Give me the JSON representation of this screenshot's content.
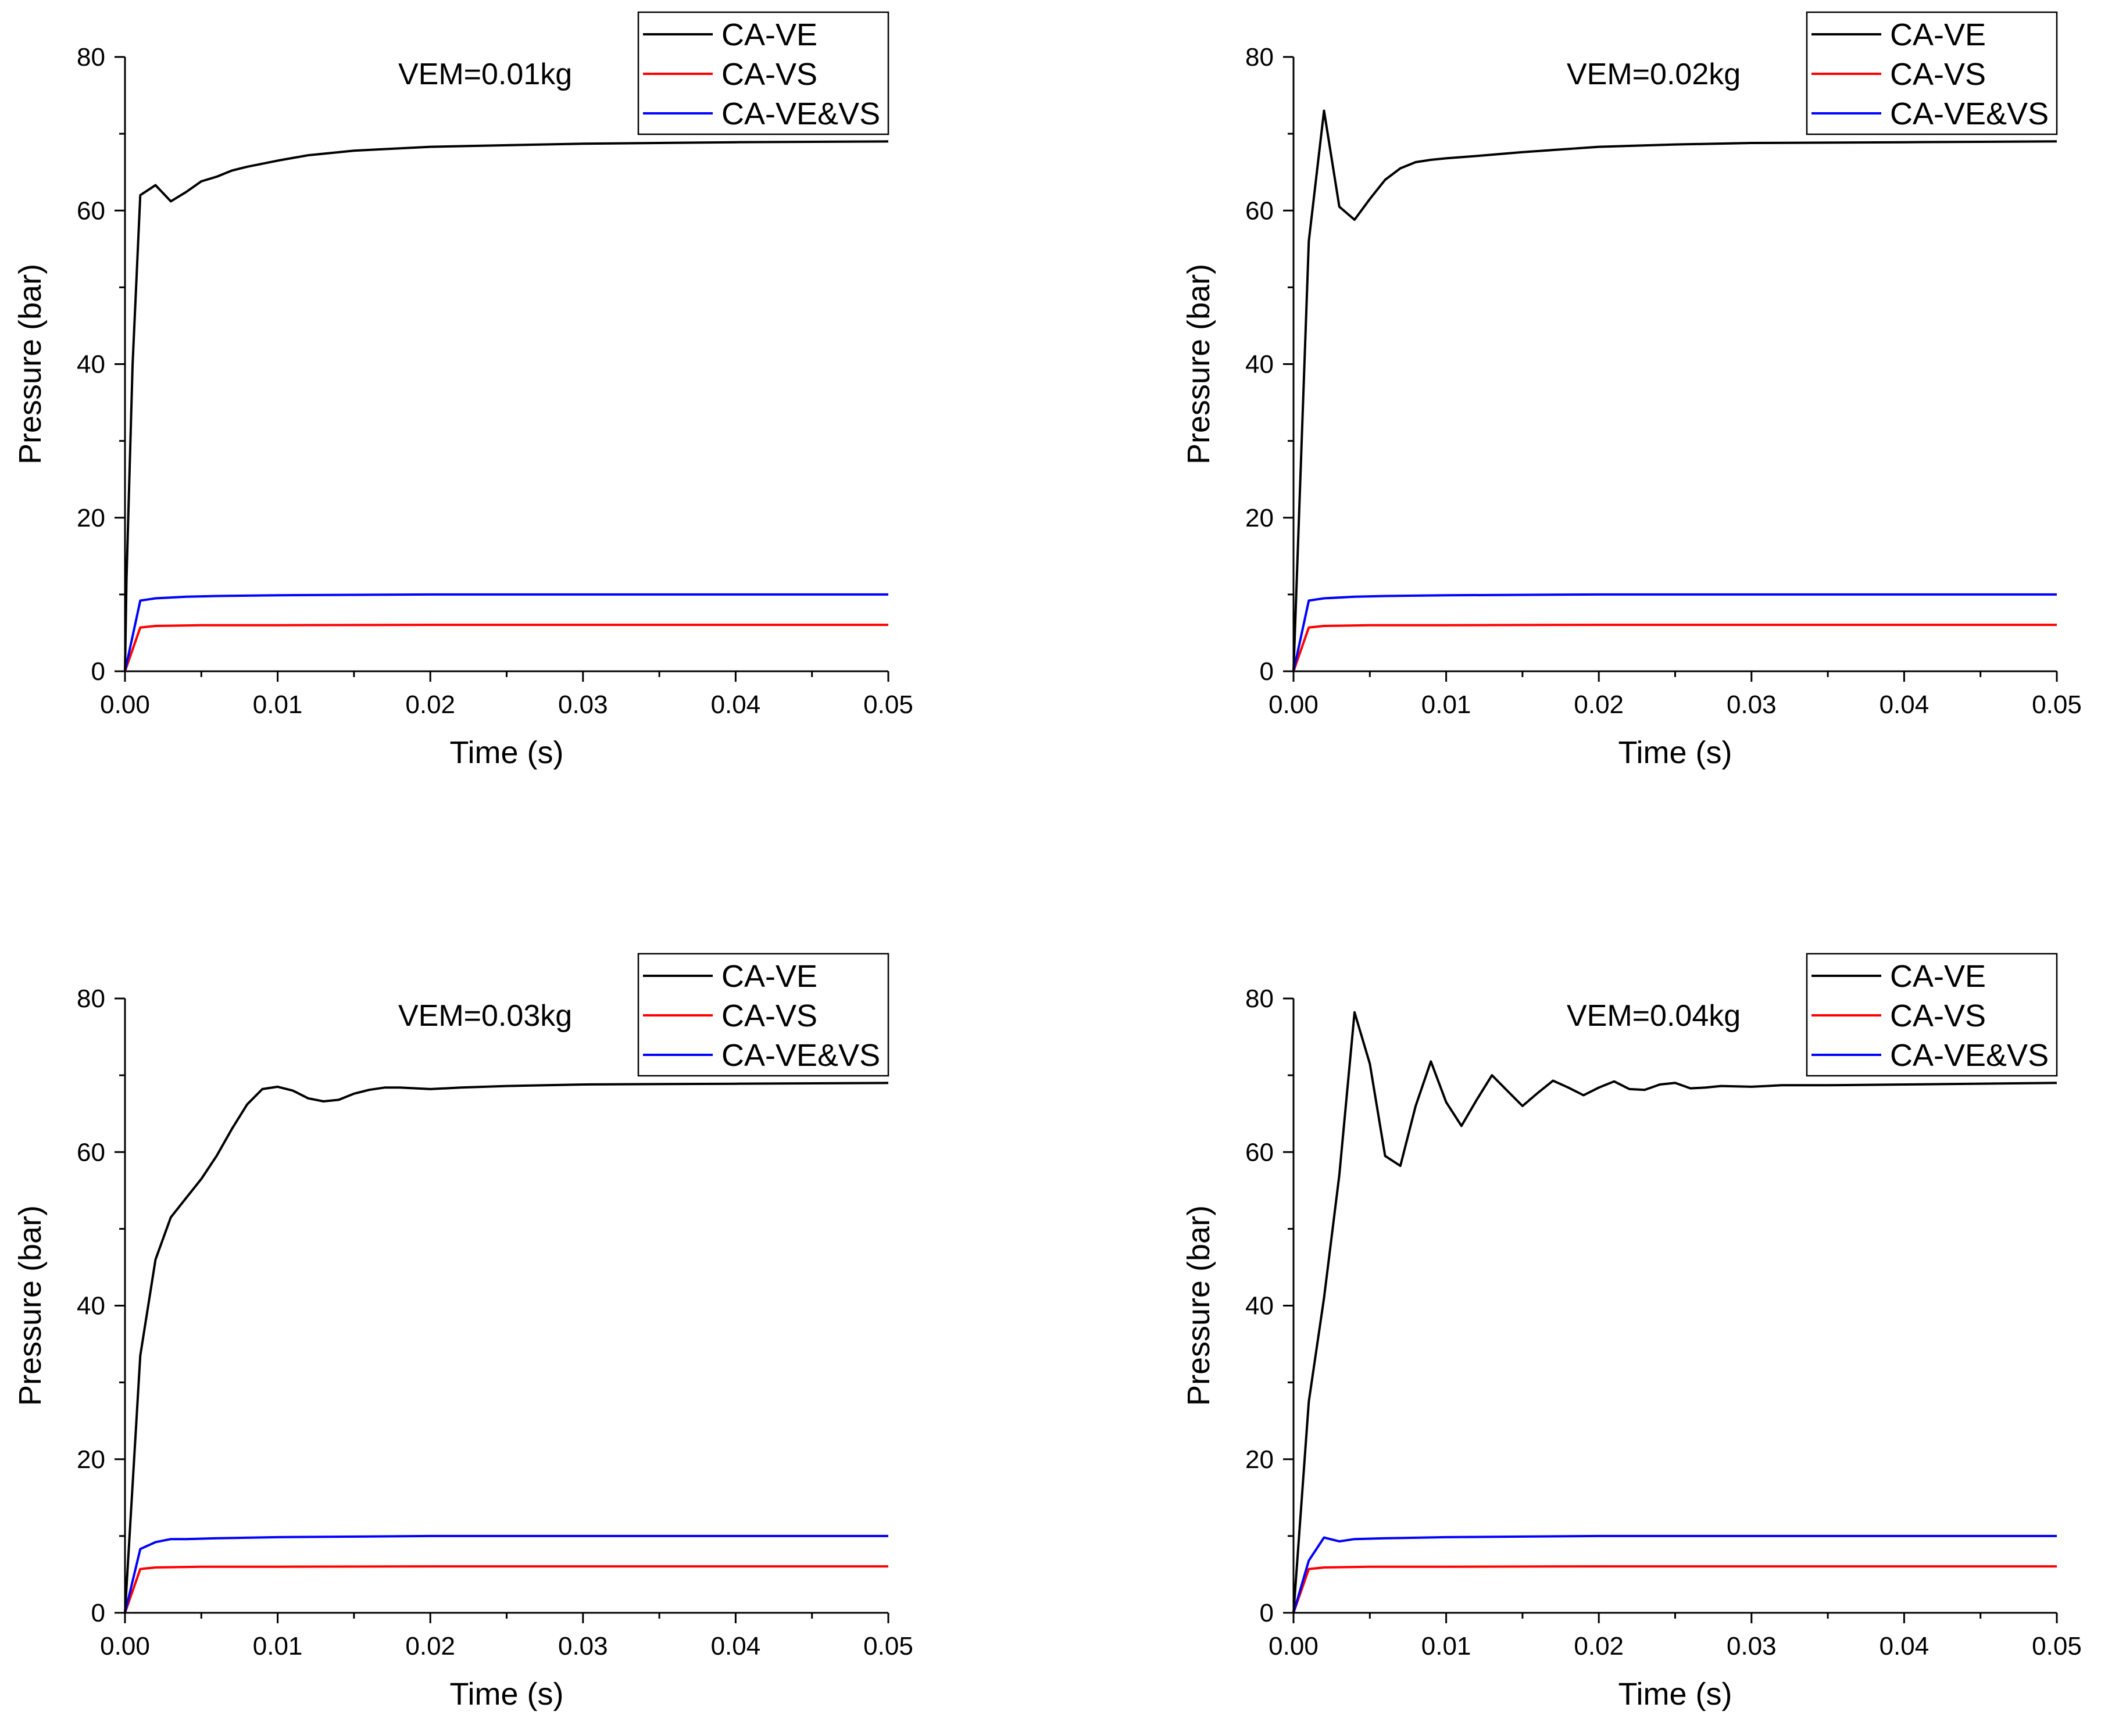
{
  "colors": {
    "CA-VE": "#000000",
    "CA-VS": "#ff0000",
    "CA-VE&VS": "#0000ff"
  },
  "chart_data": [
    {
      "type": "line",
      "annotation": "VEM=0.01kg",
      "xlabel": "Time (s)",
      "ylabel": "Pressure (bar)",
      "xlim": [
        0,
        0.05
      ],
      "ylim": [
        0,
        80
      ],
      "xticks": [
        "0.00",
        "0.01",
        "0.02",
        "0.03",
        "0.04",
        "0.05"
      ],
      "yticks": [
        "0",
        "20",
        "40",
        "60",
        "80"
      ],
      "legend_position": "top-right",
      "series": [
        {
          "name": "CA-VE",
          "x": [
            0,
            0.0001,
            0.0005,
            0.001,
            0.002,
            0.003,
            0.004,
            0.005,
            0.006,
            0.007,
            0.008,
            0.009,
            0.01,
            0.012,
            0.015,
            0.02,
            0.025,
            0.03,
            0.035,
            0.04,
            0.05
          ],
          "y": [
            0,
            12,
            40,
            62,
            63.3,
            61.2,
            62.4,
            63.8,
            64.4,
            65.2,
            65.7,
            66.1,
            66.5,
            67.2,
            67.8,
            68.3,
            68.5,
            68.7,
            68.8,
            68.9,
            69.0
          ]
        },
        {
          "name": "CA-VS",
          "x": [
            0,
            0.001,
            0.002,
            0.005,
            0.01,
            0.02,
            0.03,
            0.04,
            0.05
          ],
          "y": [
            0,
            5.7,
            5.9,
            6.0,
            6.0,
            6.05,
            6.05,
            6.05,
            6.05
          ]
        },
        {
          "name": "CA-VE&VS",
          "x": [
            0,
            0.001,
            0.002,
            0.004,
            0.006,
            0.01,
            0.02,
            0.03,
            0.04,
            0.05
          ],
          "y": [
            0,
            9.2,
            9.5,
            9.7,
            9.8,
            9.9,
            10.0,
            10.0,
            10.0,
            10.0
          ]
        }
      ]
    },
    {
      "type": "line",
      "annotation": "VEM=0.02kg",
      "xlabel": "Time (s)",
      "ylabel": "Pressure (bar)",
      "xlim": [
        0,
        0.05
      ],
      "ylim": [
        0,
        80
      ],
      "xticks": [
        "0.00",
        "0.01",
        "0.02",
        "0.03",
        "0.04",
        "0.05"
      ],
      "yticks": [
        "0",
        "20",
        "40",
        "60",
        "80"
      ],
      "legend_position": "top-right",
      "series": [
        {
          "name": "CA-VE",
          "x": [
            0,
            0.001,
            0.002,
            0.003,
            0.004,
            0.005,
            0.006,
            0.007,
            0.008,
            0.009,
            0.01,
            0.012,
            0.015,
            0.02,
            0.025,
            0.03,
            0.04,
            0.05
          ],
          "y": [
            0,
            56,
            73,
            60.5,
            58.8,
            61.5,
            64,
            65.5,
            66.3,
            66.6,
            66.8,
            67.1,
            67.6,
            68.3,
            68.6,
            68.8,
            68.9,
            69.0
          ]
        },
        {
          "name": "CA-VS",
          "x": [
            0,
            0.001,
            0.002,
            0.005,
            0.01,
            0.02,
            0.03,
            0.04,
            0.05
          ],
          "y": [
            0,
            5.7,
            5.9,
            6.0,
            6.0,
            6.05,
            6.05,
            6.05,
            6.05
          ]
        },
        {
          "name": "CA-VE&VS",
          "x": [
            0,
            0.001,
            0.002,
            0.004,
            0.006,
            0.01,
            0.02,
            0.03,
            0.04,
            0.05
          ],
          "y": [
            0,
            9.2,
            9.5,
            9.7,
            9.8,
            9.9,
            10.0,
            10.0,
            10.0,
            10.0
          ]
        }
      ]
    },
    {
      "type": "line",
      "annotation": "VEM=0.03kg",
      "xlabel": "Time (s)",
      "ylabel": "Pressure (bar)",
      "xlim": [
        0,
        0.05
      ],
      "ylim": [
        0,
        80
      ],
      "xticks": [
        "0.00",
        "0.01",
        "0.02",
        "0.03",
        "0.04",
        "0.05"
      ],
      "yticks": [
        "0",
        "20",
        "40",
        "60",
        "80"
      ],
      "legend_position": "top-right",
      "series": [
        {
          "name": "CA-VE",
          "x": [
            0,
            0.001,
            0.002,
            0.003,
            0.004,
            0.005,
            0.006,
            0.007,
            0.008,
            0.009,
            0.01,
            0.011,
            0.012,
            0.013,
            0.014,
            0.015,
            0.016,
            0.017,
            0.018,
            0.02,
            0.022,
            0.025,
            0.03,
            0.04,
            0.05
          ],
          "y": [
            0,
            33.5,
            46,
            51.5,
            54,
            56.5,
            59.5,
            63,
            66.2,
            68.2,
            68.5,
            68,
            67,
            66.6,
            66.8,
            67.6,
            68.1,
            68.4,
            68.4,
            68.2,
            68.4,
            68.6,
            68.8,
            68.9,
            69.0
          ]
        },
        {
          "name": "CA-VS",
          "x": [
            0,
            0.001,
            0.002,
            0.005,
            0.01,
            0.02,
            0.03,
            0.04,
            0.05
          ],
          "y": [
            0,
            5.7,
            5.9,
            6.0,
            6.0,
            6.05,
            6.05,
            6.05,
            6.05
          ]
        },
        {
          "name": "CA-VE&VS",
          "x": [
            0,
            0.001,
            0.002,
            0.003,
            0.004,
            0.006,
            0.01,
            0.02,
            0.03,
            0.04,
            0.05
          ],
          "y": [
            0,
            8.3,
            9.2,
            9.6,
            9.6,
            9.7,
            9.85,
            10.0,
            10.0,
            10.0,
            10.0
          ]
        }
      ]
    },
    {
      "type": "line",
      "annotation": "VEM=0.04kg",
      "xlabel": "Time (s)",
      "ylabel": "Pressure (bar)",
      "xlim": [
        0,
        0.05
      ],
      "ylim": [
        0,
        80
      ],
      "xticks": [
        "0.00",
        "0.01",
        "0.02",
        "0.03",
        "0.04",
        "0.05"
      ],
      "yticks": [
        "0",
        "20",
        "40",
        "60",
        "80"
      ],
      "legend_position": "top-right",
      "series": [
        {
          "name": "CA-VE",
          "x": [
            0,
            0.001,
            0.002,
            0.003,
            0.004,
            0.005,
            0.006,
            0.007,
            0.008,
            0.009,
            0.01,
            0.011,
            0.012,
            0.013,
            0.014,
            0.015,
            0.016,
            0.017,
            0.018,
            0.019,
            0.02,
            0.021,
            0.022,
            0.023,
            0.024,
            0.025,
            0.026,
            0.027,
            0.028,
            0.03,
            0.032,
            0.035,
            0.04,
            0.05
          ],
          "y": [
            0,
            27.5,
            41,
            57,
            78.2,
            71.5,
            59.5,
            58.2,
            66,
            71.8,
            66.5,
            63.4,
            66.8,
            70,
            68,
            66,
            67.7,
            69.3,
            68.4,
            67.4,
            68.4,
            69.2,
            68.2,
            68.1,
            68.8,
            69,
            68.3,
            68.4,
            68.6,
            68.5,
            68.7,
            68.7,
            68.8,
            69.0
          ]
        },
        {
          "name": "CA-VS",
          "x": [
            0,
            0.001,
            0.002,
            0.005,
            0.01,
            0.02,
            0.03,
            0.04,
            0.05
          ],
          "y": [
            0,
            5.7,
            5.9,
            6.0,
            6.0,
            6.05,
            6.05,
            6.05,
            6.05
          ]
        },
        {
          "name": "CA-VE&VS",
          "x": [
            0,
            0.001,
            0.002,
            0.003,
            0.004,
            0.006,
            0.01,
            0.02,
            0.03,
            0.04,
            0.05
          ],
          "y": [
            0,
            6.8,
            9.8,
            9.3,
            9.6,
            9.7,
            9.85,
            10.0,
            10.0,
            10.0,
            10.0
          ]
        }
      ]
    }
  ]
}
